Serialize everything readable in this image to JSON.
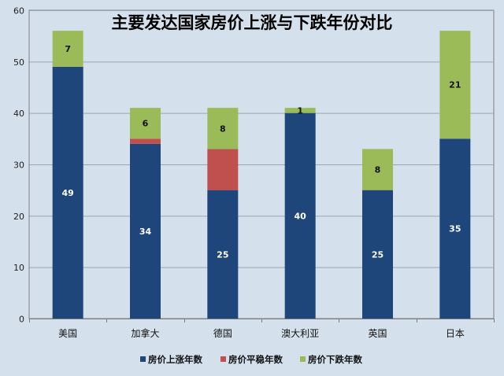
{
  "chart_data": {
    "type": "bar",
    "stacked": true,
    "title": "主要发达国家房价上涨与下跌年份对比",
    "xlabel": "",
    "ylabel": "",
    "ylim": [
      0,
      60
    ],
    "yticks": [
      0,
      10,
      20,
      30,
      40,
      50,
      60
    ],
    "grid": true,
    "legend_position": "bottom",
    "categories": [
      "美国",
      "加拿大",
      "德国",
      "澳大利亚",
      "英国",
      "日本"
    ],
    "series": [
      {
        "name": "房价上涨年数",
        "color": "#1f467b",
        "values": [
          49,
          34,
          25,
          40,
          25,
          35
        ],
        "labels": [
          "49",
          "34",
          "25",
          "40",
          "25",
          "35"
        ]
      },
      {
        "name": "房价平稳年数",
        "color": "#c0504d",
        "values": [
          0,
          1,
          8,
          0,
          0,
          0
        ],
        "labels": [
          "",
          "",
          "",
          "",
          "",
          ""
        ]
      },
      {
        "name": "房价下跌年数",
        "color": "#9bbb59",
        "values": [
          7,
          6,
          8,
          1,
          8,
          21
        ],
        "labels": [
          "7",
          "6",
          "8",
          "1",
          "8",
          "21"
        ]
      }
    ],
    "colors": {
      "background": "#d4e0ec",
      "grid": "#9aa6b4",
      "axis": "#808080"
    }
  }
}
